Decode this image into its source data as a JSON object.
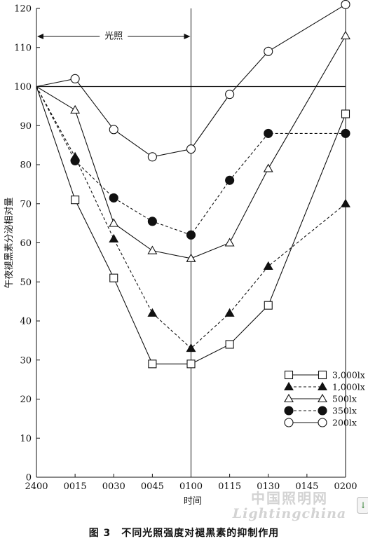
{
  "chart_data": {
    "type": "line",
    "categories": [
      "2400",
      "0015",
      "0030",
      "0045",
      "0100",
      "0115",
      "0130",
      "0145",
      "0200"
    ],
    "ylabel": "午夜褪黑素分泌相对量",
    "xlabel": "时间",
    "ylim": [
      0,
      120
    ],
    "yticks": [
      0,
      10,
      20,
      30,
      40,
      50,
      60,
      70,
      80,
      90,
      100,
      110,
      120
    ],
    "reference_line": 100,
    "light_period_label": "光照",
    "light_period": [
      "2400",
      "0100"
    ],
    "grid": false,
    "legend_position": "bottom-right",
    "series": [
      {
        "name": "3,000lx",
        "marker": "square-open",
        "line": "solid",
        "x": [
          "2400",
          "0015",
          "0030",
          "0045",
          "0100",
          "0115",
          "0130",
          "0200"
        ],
        "values": [
          100,
          71,
          51,
          29,
          29,
          34,
          44,
          93
        ]
      },
      {
        "name": "1,000lx",
        "marker": "triangle-filled",
        "line": "dashed",
        "x": [
          "2400",
          "0015",
          "0030",
          "0045",
          "0100",
          "0115",
          "0130",
          "0200"
        ],
        "values": [
          100,
          82,
          61,
          42,
          33,
          42,
          54,
          70
        ]
      },
      {
        "name": "500lx",
        "marker": "triangle-open",
        "line": "solid",
        "x": [
          "2400",
          "0015",
          "0030",
          "0045",
          "0100",
          "0115",
          "0130",
          "0200"
        ],
        "values": [
          100,
          94,
          65,
          58,
          56,
          60,
          79,
          113
        ]
      },
      {
        "name": "350lx",
        "marker": "circle-filled",
        "line": "dashed",
        "x": [
          "2400",
          "0015",
          "0030",
          "0045",
          "0100",
          "0115",
          "0130",
          "0200"
        ],
        "values": [
          100,
          81,
          71.5,
          65.5,
          62,
          76,
          88,
          88
        ]
      },
      {
        "name": "200lx",
        "marker": "circle-open",
        "line": "solid",
        "x": [
          "2400",
          "0015",
          "0030",
          "0045",
          "0100",
          "0115",
          "0130",
          "0200"
        ],
        "values": [
          100,
          102,
          89,
          82,
          84,
          98,
          109,
          121
        ]
      }
    ]
  },
  "caption": "图 3　不同光照强度对褪黑素的抑制作用",
  "watermark": {
    "cn": "中国照明网",
    "en": "Lightingchina"
  },
  "scroll_button": {
    "icon": "download-arrow-icon",
    "glyph": "↓"
  }
}
